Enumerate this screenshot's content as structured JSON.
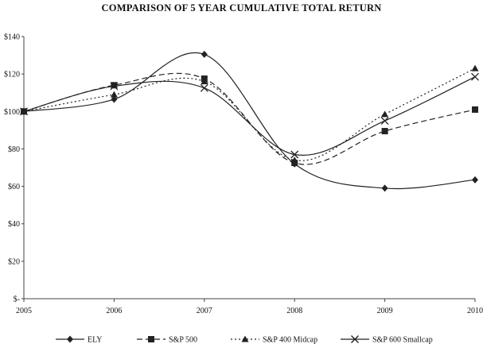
{
  "chart_data": {
    "type": "line",
    "title": "COMPARISON OF 5 YEAR CUMULATIVE TOTAL RETURN",
    "xlabel": "",
    "ylabel": "",
    "x": [
      "2005",
      "2006",
      "2007",
      "2008",
      "2009",
      "2010"
    ],
    "y_ticks": [
      "$-",
      "$20",
      "$40",
      "$60",
      "$80",
      "$100",
      "$120",
      "$140"
    ],
    "ylim": [
      0,
      140
    ],
    "grid": false,
    "legend_position": "bottom",
    "series": [
      {
        "name": "ELY",
        "values": [
          100,
          106.5,
          130.5,
          72,
          59,
          63.5
        ],
        "marker": "diamond",
        "dash": "solid",
        "color": "#222222"
      },
      {
        "name": "S&P 500",
        "values": [
          100,
          114,
          117.5,
          72.5,
          89.5,
          101
        ],
        "marker": "square",
        "dash": "dashed",
        "color": "#222222"
      },
      {
        "name": "S&P 400 Midcap",
        "values": [
          100,
          109,
          116,
          74,
          98.5,
          123
        ],
        "marker": "triangle",
        "dash": "dotted",
        "color": "#222222"
      },
      {
        "name": "S&P 600 Smallcap",
        "values": [
          100,
          113.5,
          112.5,
          77,
          95,
          118.5
        ],
        "marker": "x",
        "dash": "solid",
        "color": "#222222"
      }
    ]
  }
}
